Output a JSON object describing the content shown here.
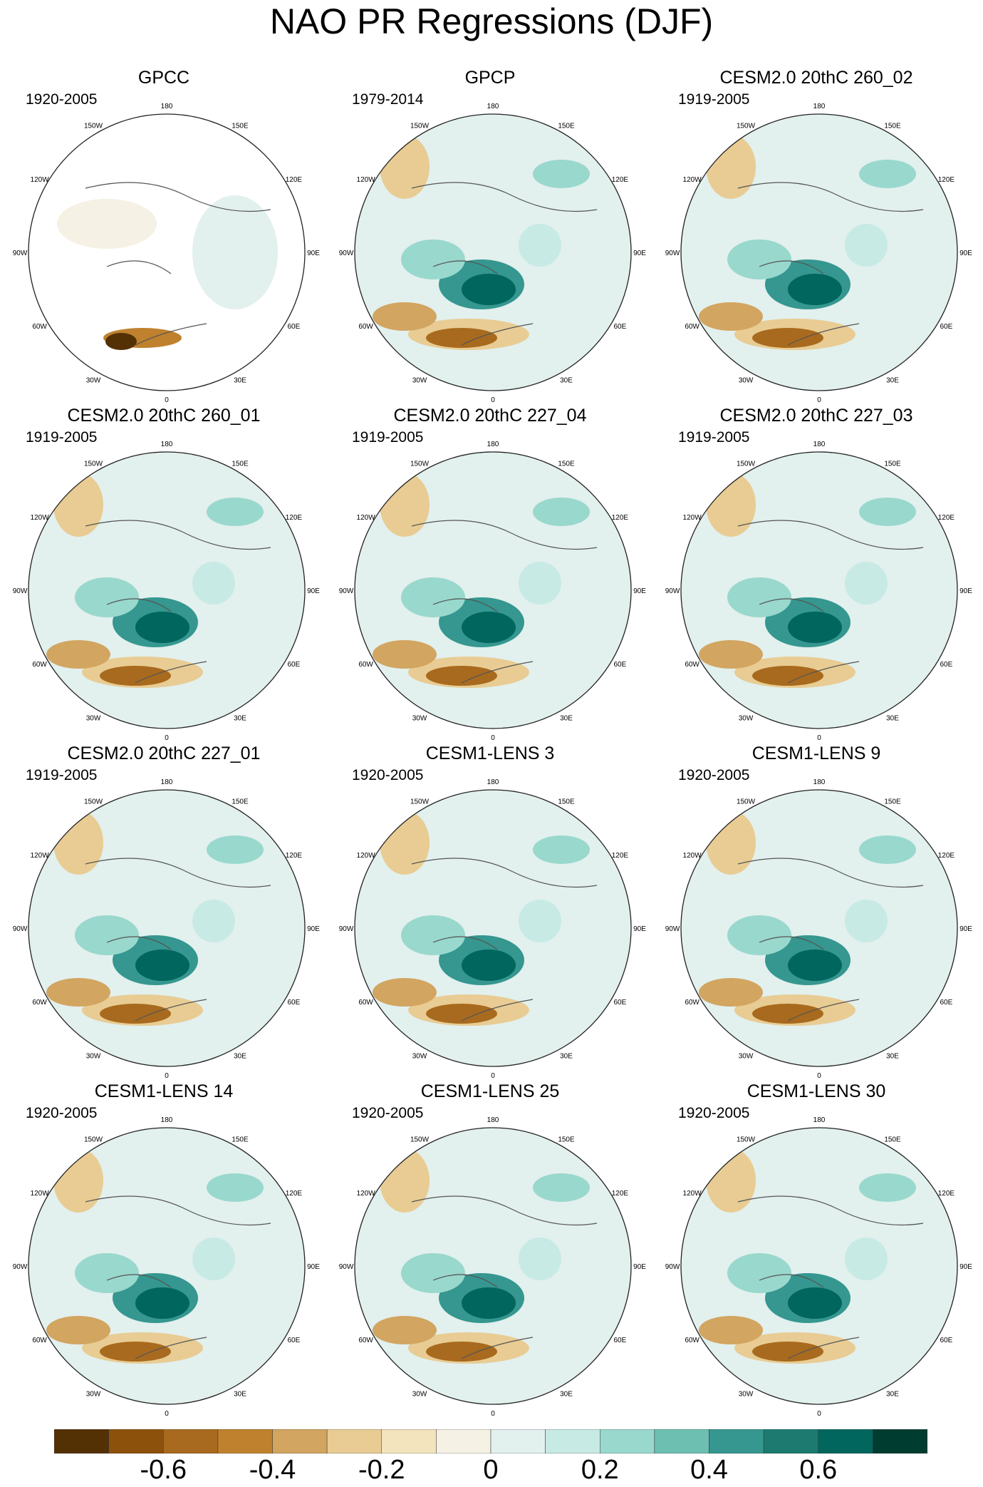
{
  "title": "NAO PR Regressions (DJF)",
  "panels": [
    {
      "title": "GPCC",
      "period": "1920-2005",
      "coverage": "land-only"
    },
    {
      "title": "GPCP",
      "period": "1979-2014",
      "coverage": "global"
    },
    {
      "title": "CESM2.0 20thC 260_02",
      "period": "1919-2005",
      "coverage": "global"
    },
    {
      "title": "CESM2.0 20thC 260_01",
      "period": "1919-2005",
      "coverage": "global"
    },
    {
      "title": "CESM2.0 20thC 227_04",
      "period": "1919-2005",
      "coverage": "global"
    },
    {
      "title": "CESM2.0 20thC 227_03",
      "period": "1919-2005",
      "coverage": "global"
    },
    {
      "title": "CESM2.0 20thC 227_01",
      "period": "1919-2005",
      "coverage": "global"
    },
    {
      "title": "CESM1-LENS 3",
      "period": "1920-2005",
      "coverage": "global"
    },
    {
      "title": "CESM1-LENS 9",
      "period": "1920-2005",
      "coverage": "global"
    },
    {
      "title": "CESM1-LENS 14",
      "period": "1920-2005",
      "coverage": "global"
    },
    {
      "title": "CESM1-LENS 25",
      "period": "1920-2005",
      "coverage": "global"
    },
    {
      "title": "CESM1-LENS 30",
      "period": "1920-2005",
      "coverage": "global"
    }
  ],
  "longitude_labels": [
    "180",
    "150E",
    "120E",
    "90E",
    "60E",
    "30E",
    "0",
    "30W",
    "60W",
    "90W",
    "120W",
    "150W"
  ],
  "colorbar": {
    "colors": [
      "#543005",
      "#8c510a",
      "#a86a1e",
      "#bf812d",
      "#d2a560",
      "#e8cc93",
      "#f3e4be",
      "#f5f1e4",
      "#e2f0ee",
      "#c7eae5",
      "#99d8cd",
      "#6dbfb1",
      "#35978f",
      "#1c7a71",
      "#01665e",
      "#003c30"
    ],
    "labels": [
      "-0.6",
      "-0.4",
      "-0.2",
      "0",
      "0.2",
      "0.4",
      "0.6"
    ],
    "label_bins": [
      2,
      4,
      6,
      8,
      10,
      12,
      14
    ]
  }
}
